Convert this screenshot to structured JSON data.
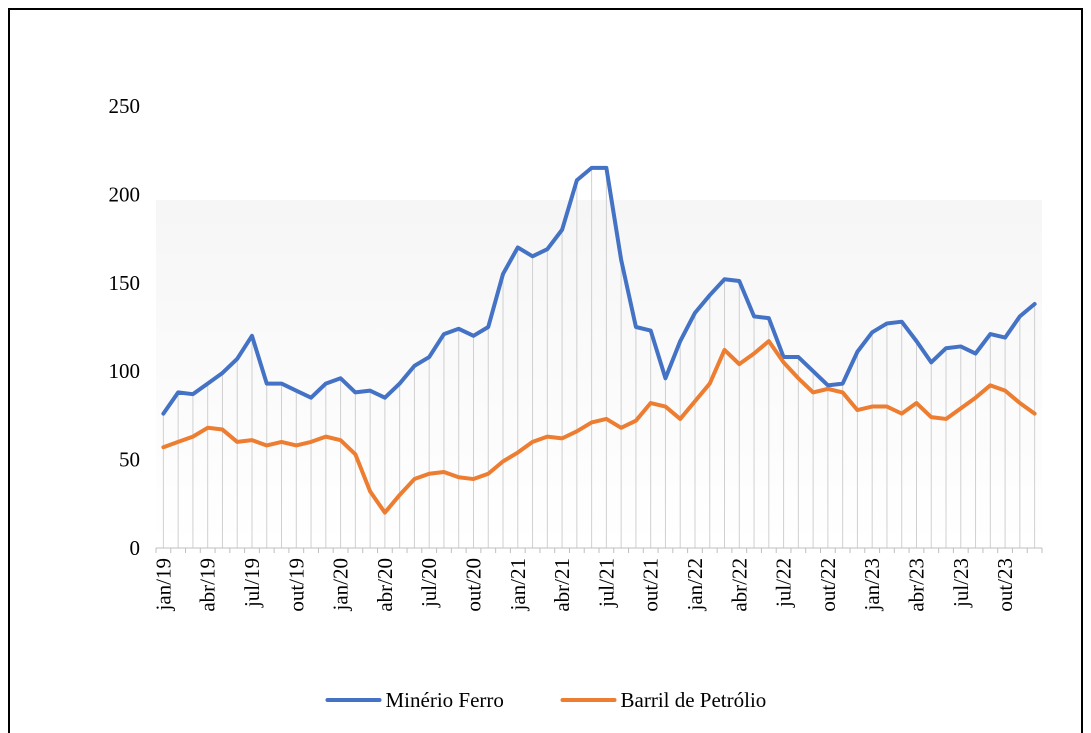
{
  "chart_data": {
    "type": "line",
    "categories": [
      "jan/19",
      null,
      null,
      "abr/19",
      null,
      null,
      "jul/19",
      null,
      null,
      "out/19",
      null,
      null,
      "jan/20",
      null,
      null,
      "abr/20",
      null,
      null,
      "jul/20",
      null,
      null,
      "out/20",
      null,
      null,
      "jan/21",
      null,
      null,
      "abr/21",
      null,
      null,
      "jul/21",
      null,
      null,
      "out/21",
      null,
      null,
      "jan/22",
      null,
      null,
      "abr/22",
      null,
      null,
      "jul/22",
      null,
      null,
      "out/22",
      null,
      null,
      "jan/23",
      null,
      null,
      "abr/23",
      null,
      null,
      "jul/23",
      null,
      null,
      "out/23",
      null,
      null
    ],
    "series": [
      {
        "name": "Minério Ferro",
        "color": "#4472c4",
        "values": [
          76,
          88,
          87,
          93,
          99,
          107,
          120,
          93,
          93,
          89,
          85,
          93,
          96,
          88,
          89,
          85,
          93,
          103,
          108,
          121,
          124,
          120,
          125,
          155,
          170,
          165,
          169,
          180,
          208,
          215,
          215,
          163,
          125,
          123,
          96,
          117,
          133,
          143,
          152,
          151,
          131,
          130,
          108,
          108,
          100,
          92,
          93,
          111,
          122,
          127,
          128,
          117,
          105,
          113,
          114,
          110,
          121,
          119,
          131,
          138
        ]
      },
      {
        "name": "Barril de Petrólio",
        "color": "#ed7d31",
        "values": [
          57,
          60,
          63,
          68,
          67,
          60,
          61,
          58,
          60,
          58,
          60,
          63,
          61,
          53,
          32,
          20,
          30,
          39,
          42,
          43,
          40,
          39,
          42,
          49,
          54,
          60,
          63,
          62,
          66,
          71,
          73,
          68,
          72,
          82,
          80,
          73,
          83,
          93,
          112,
          104,
          110,
          117,
          105,
          96,
          88,
          90,
          88,
          78,
          80,
          80,
          76,
          82,
          74,
          73,
          79,
          85,
          92,
          89,
          82,
          76
        ]
      }
    ],
    "ylim": [
      0,
      250
    ],
    "yticks": [
      0,
      50,
      100,
      150,
      200,
      250
    ],
    "drop_lines": true,
    "legend": "bottom"
  }
}
